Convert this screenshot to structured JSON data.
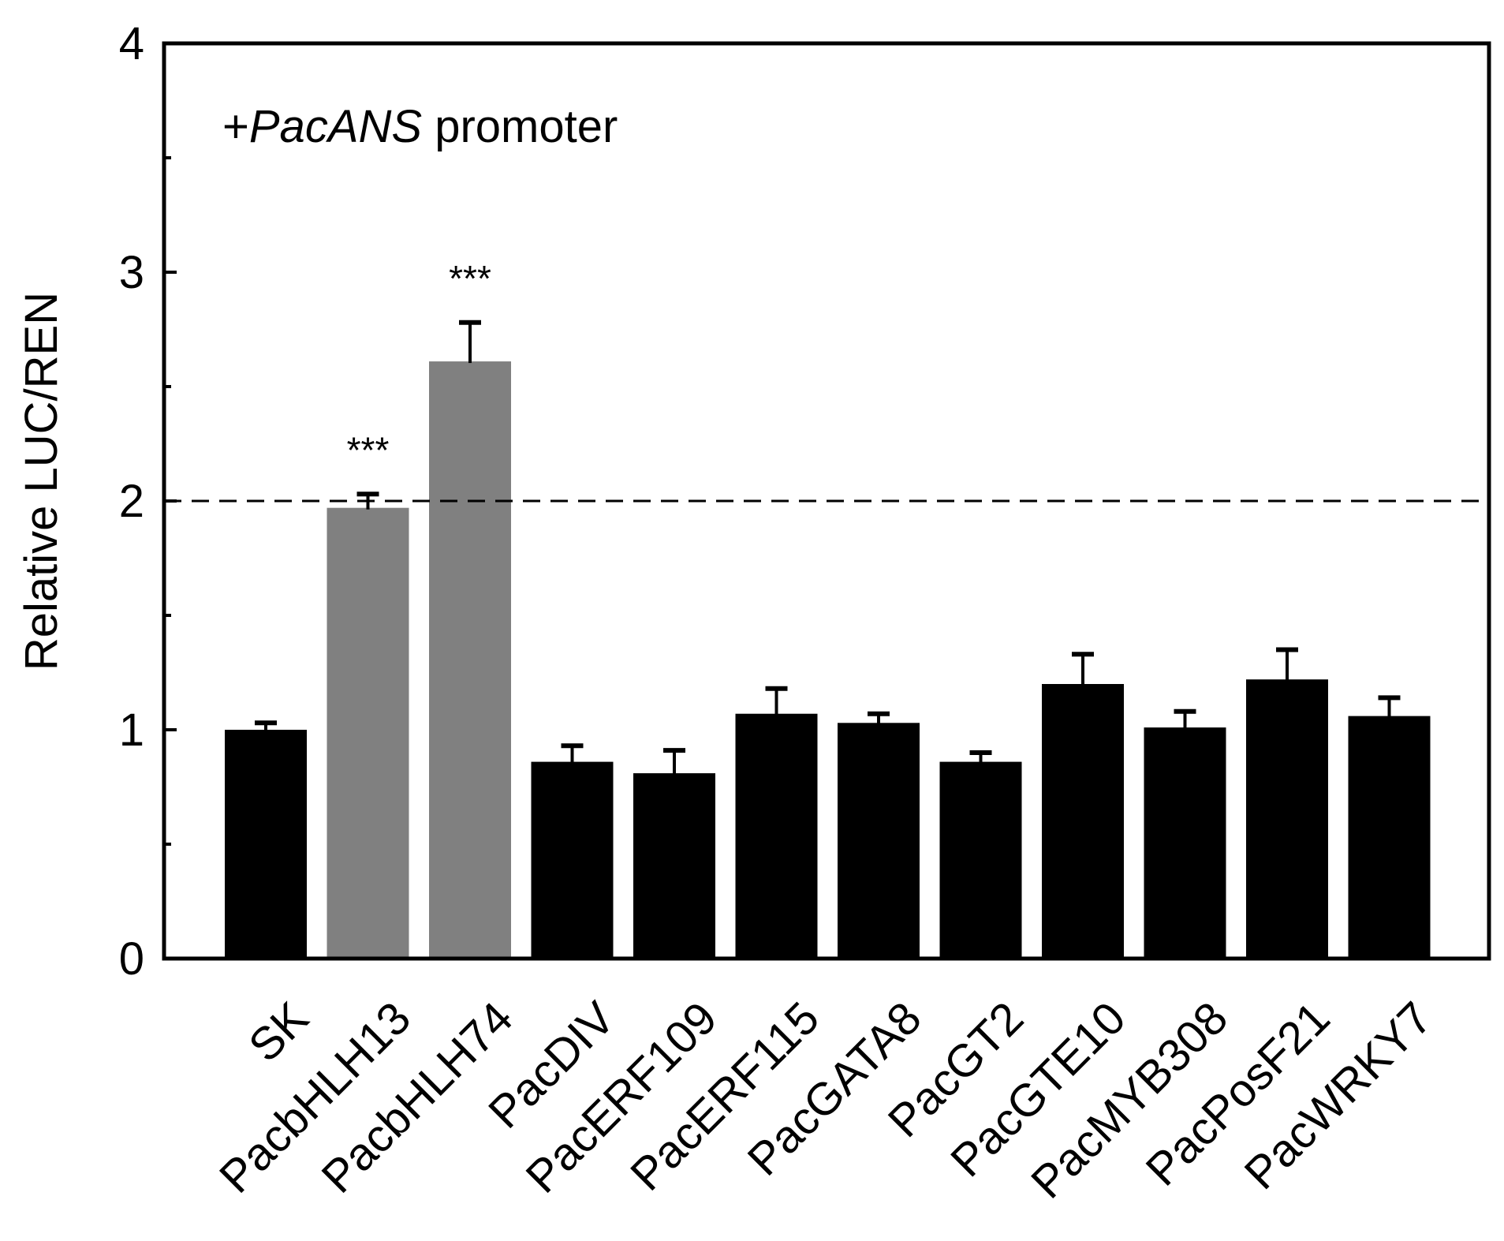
{
  "chart_data": {
    "type": "bar",
    "annotation": {
      "prefix": "+",
      "gene": "PacANS",
      "suffix": " promoter"
    },
    "ylabel": "Relative LUC/REN",
    "xlabel": "",
    "ylim": [
      0,
      4
    ],
    "yticks": [
      0,
      1,
      2,
      3,
      4
    ],
    "yminor": [
      0.5,
      1.5,
      2.5,
      3.5
    ],
    "reference_line": 2,
    "categories": [
      "SK",
      "PacbHLH13",
      "PacbHLH74",
      "PacDIV",
      "PacERF109",
      "PacERF115",
      "PacGATA8",
      "PacGT2",
      "PacGTE10",
      "PacMYB308",
      "PacPosF21",
      "PacWRKY7"
    ],
    "values": [
      1.0,
      1.97,
      2.61,
      0.86,
      0.81,
      1.07,
      1.03,
      0.86,
      1.2,
      1.01,
      1.22,
      1.06
    ],
    "errors": [
      0.03,
      0.06,
      0.17,
      0.07,
      0.1,
      0.11,
      0.04,
      0.04,
      0.13,
      0.07,
      0.13,
      0.08
    ],
    "significance": [
      "",
      "***",
      "***",
      "",
      "",
      "",
      "",
      "",
      "",
      "",
      "",
      ""
    ],
    "colors": {
      "normal": "#000000",
      "highlight": "#808080"
    },
    "highlighted": [
      false,
      true,
      true,
      false,
      false,
      false,
      false,
      false,
      false,
      false,
      false,
      false
    ]
  }
}
